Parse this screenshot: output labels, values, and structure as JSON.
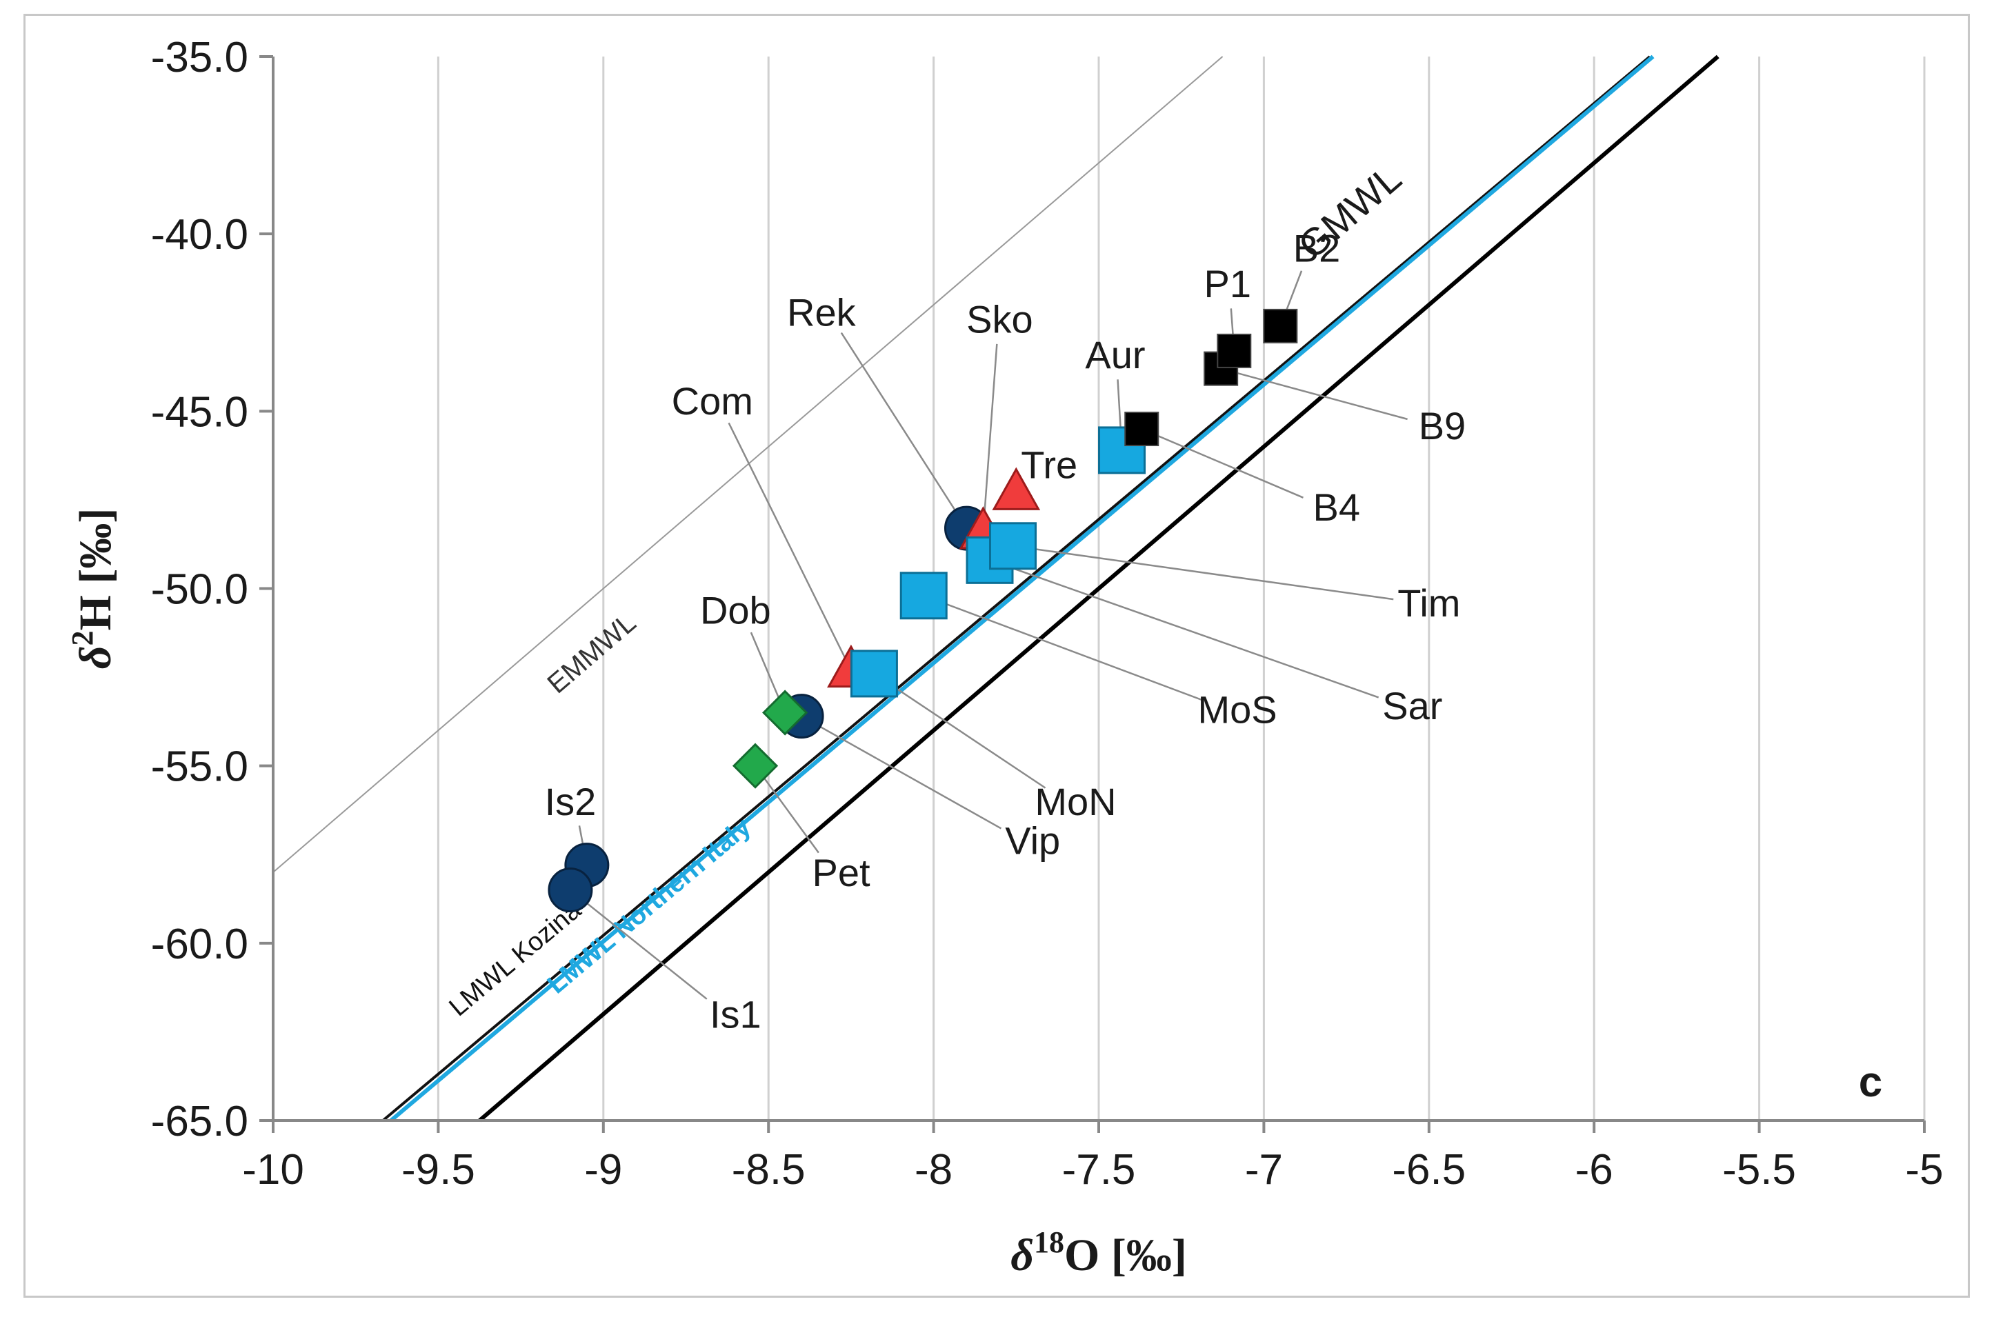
{
  "chart_data": {
    "type": "scatter",
    "panel_letter": "c",
    "xlabel": {
      "italic": "δ",
      "sup": "18",
      "main": "O [‰]"
    },
    "ylabel": {
      "italic": "δ",
      "sup": "2",
      "main": "H [‰]"
    },
    "xlim": [
      -10,
      -5
    ],
    "ylim": [
      -65,
      -35
    ],
    "x_ticks": [
      "-10",
      "-9.5",
      "-9",
      "-8.5",
      "-8",
      "-7.5",
      "-7",
      "-6.5",
      "-6",
      "-5.5",
      "-5"
    ],
    "y_ticks": [
      "-35.0",
      "-40.0",
      "-45.0",
      "-50.0",
      "-55.0",
      "-60.0",
      "-65.0"
    ],
    "reference_lines": [
      {
        "name": "EMMWL",
        "label": "EMMWL",
        "slope": 8,
        "intercept": 22,
        "color": "#999999"
      },
      {
        "name": "LMWL Kozina",
        "label": "LMWL Kozina",
        "slope": 7.82,
        "intercept": 10.6,
        "color": "#111111"
      },
      {
        "name": "LMWL Northern Italy",
        "label": "LMWL Northern Italy",
        "slope": 7.85,
        "intercept": 10.7,
        "color": "#1fa8e0"
      },
      {
        "name": "GMWL",
        "label": "GMWL",
        "slope": 8,
        "intercept": 10,
        "color": "#000000"
      }
    ],
    "series": [
      {
        "name": "dark blue circles",
        "marker": "circle",
        "color": "#0e3d6e",
        "points": [
          {
            "label": "Is2",
            "x": -9.05,
            "y": -57.8
          },
          {
            "label": "Is1",
            "x": -9.1,
            "y": -58.5
          },
          {
            "label": "Vip",
            "x": -8.4,
            "y": -53.6
          },
          {
            "label": "Rek",
            "x": -7.9,
            "y": -48.3
          }
        ]
      },
      {
        "name": "green diamonds",
        "marker": "diamond",
        "color": "#22a94b",
        "points": [
          {
            "label": "Pet",
            "x": -8.54,
            "y": -55.0
          },
          {
            "label": "Dob",
            "x": -8.45,
            "y": -53.5
          }
        ]
      },
      {
        "name": "red triangles",
        "marker": "triangle",
        "color": "#f03c3c",
        "points": [
          {
            "label": "Com",
            "x": -8.25,
            "y": -52.3
          },
          {
            "label": "Sko",
            "x": -7.85,
            "y": -48.4
          },
          {
            "label": "Tre",
            "x": -7.75,
            "y": -47.3
          }
        ]
      },
      {
        "name": "light blue squares",
        "marker": "square",
        "color": "#16a8e0",
        "points": [
          {
            "label": "MoN",
            "x": -8.18,
            "y": -52.4
          },
          {
            "label": "MoS",
            "x": -8.03,
            "y": -50.2
          },
          {
            "label": "Sar",
            "x": -7.83,
            "y": -49.2
          },
          {
            "label": "Tim",
            "x": -7.76,
            "y": -48.8
          },
          {
            "label": "Aur",
            "x": -7.43,
            "y": -46.1
          }
        ]
      },
      {
        "name": "black squares",
        "marker": "small-square",
        "color": "#000000",
        "points": [
          {
            "label": "B4",
            "x": -7.37,
            "y": -45.5
          },
          {
            "label": "B9",
            "x": -7.13,
            "y": -43.8
          },
          {
            "label": "P1",
            "x": -7.09,
            "y": -43.3
          },
          {
            "label": "B2",
            "x": -6.95,
            "y": -42.6
          }
        ]
      }
    ],
    "point_annotations": [
      {
        "label": "Is2",
        "text_x": -9.1,
        "text_y": -56.0
      },
      {
        "label": "Is1",
        "text_x": -8.6,
        "text_y": -62.0
      },
      {
        "label": "Pet",
        "text_x": -8.28,
        "text_y": -58.0
      },
      {
        "label": "Vip",
        "text_x": -7.7,
        "text_y": -57.1
      },
      {
        "label": "Dob",
        "text_x": -8.6,
        "text_y": -50.6
      },
      {
        "label": "Com",
        "text_x": -8.67,
        "text_y": -44.7
      },
      {
        "label": "Rek",
        "text_x": -8.34,
        "text_y": -42.2
      },
      {
        "label": "Sko",
        "text_x": -7.8,
        "text_y": -42.4
      },
      {
        "label": "Tre",
        "text_x": -7.65,
        "text_y": -46.5
      },
      {
        "label": "Aur",
        "text_x": -7.45,
        "text_y": -43.4
      },
      {
        "label": "P1",
        "text_x": -7.11,
        "text_y": -41.4
      },
      {
        "label": "B2",
        "text_x": -6.84,
        "text_y": -40.4
      },
      {
        "label": "B9",
        "text_x": -6.46,
        "text_y": -45.4
      },
      {
        "label": "B4",
        "text_x": -6.78,
        "text_y": -47.7
      },
      {
        "label": "Tim",
        "text_x": -6.5,
        "text_y": -50.4
      },
      {
        "label": "Sar",
        "text_x": -6.55,
        "text_y": -53.3
      },
      {
        "label": "MoS",
        "text_x": -7.08,
        "text_y": -53.4
      },
      {
        "label": "MoN",
        "text_x": -7.57,
        "text_y": -56.0
      }
    ]
  }
}
